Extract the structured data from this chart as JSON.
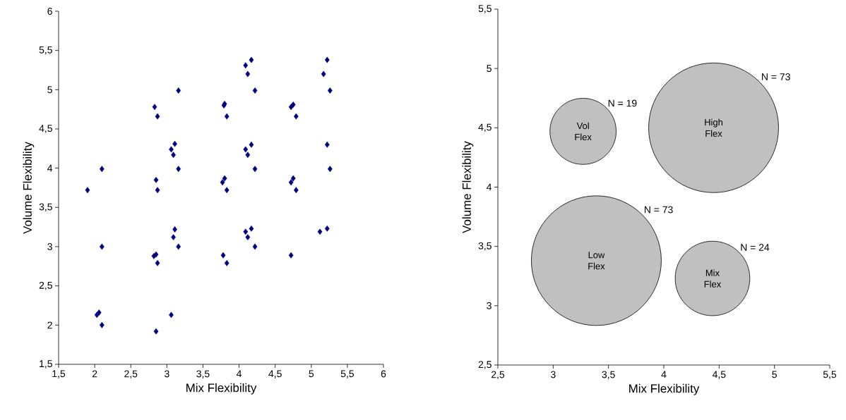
{
  "chart_data": [
    {
      "type": "scatter",
      "xlabel": "Mix Flexibility",
      "ylabel": "Volume Flexibility",
      "marker": "diamond",
      "color": "#000080",
      "xlim": [
        1.5,
        6
      ],
      "ylim": [
        1.5,
        6
      ],
      "xticks": [
        {
          "value": 1.5,
          "label": "1,5"
        },
        2,
        {
          "value": 2.5,
          "label": "2,5"
        },
        3,
        {
          "value": 3.5,
          "label": "3,5"
        },
        4,
        {
          "value": 4.5,
          "label": "4,5"
        },
        5,
        {
          "value": 5.5,
          "label": "5,5"
        },
        6
      ],
      "yticks": [
        {
          "value": 1.5,
          "label": "1,5"
        },
        2,
        {
          "value": 2.5,
          "label": "2,5"
        },
        3,
        {
          "value": 3.5,
          "label": "3,5"
        },
        4,
        {
          "value": 4.5,
          "label": "4,5"
        },
        5,
        {
          "value": 5.5,
          "label": "5,5"
        },
        6
      ],
      "x": [
        1.9,
        2.1,
        2.1,
        2.06,
        2.03,
        2.1,
        2.85,
        2.83,
        2.87,
        2.85,
        2.87,
        2.85,
        2.82,
        2.87,
        3.06,
        3.16,
        3.11,
        3.06,
        3.09,
        3.16,
        3.11,
        3.09,
        3.16,
        4.17,
        4.09,
        4.12,
        4.22,
        3.79,
        3.8,
        3.83,
        5.22,
        5.17,
        5.26,
        4.75,
        4.72,
        4.79,
        4.17,
        4.09,
        4.12,
        4.22,
        3.8,
        3.77,
        3.83,
        5.22,
        5.26,
        4.75,
        4.72,
        4.79,
        4.17,
        4.09,
        4.12,
        4.22,
        3.78,
        3.83,
        4.72,
        5.12,
        5.22
      ],
      "values": [
        3.72,
        3.99,
        3.0,
        2.16,
        2.13,
        2.0,
        1.92,
        4.78,
        4.66,
        3.85,
        3.72,
        2.9,
        2.88,
        2.79,
        2.13,
        4.99,
        4.31,
        4.24,
        4.17,
        3.99,
        3.22,
        3.12,
        3.0,
        5.38,
        5.31,
        5.2,
        4.99,
        4.8,
        4.82,
        4.66,
        5.38,
        5.2,
        4.99,
        4.81,
        4.78,
        4.66,
        4.3,
        4.24,
        4.17,
        3.99,
        3.87,
        3.82,
        3.72,
        4.3,
        3.99,
        3.87,
        3.82,
        3.72,
        3.23,
        3.19,
        3.12,
        3.0,
        2.89,
        2.79,
        2.89,
        3.19,
        3.23
      ]
    },
    {
      "type": "bubble",
      "xlabel": "Mix Flexibility",
      "ylabel": "Volume Flexibility",
      "xlim": [
        2.5,
        5.5
      ],
      "ylim": [
        2.5,
        5.5
      ],
      "xticks": [
        {
          "value": 2.5,
          "label": "2,5"
        },
        3,
        {
          "value": 3.5,
          "label": "3,5"
        },
        4,
        {
          "value": 4.5,
          "label": "4,5"
        },
        5,
        {
          "value": 5.5,
          "label": "5,5"
        }
      ],
      "yticks": [
        {
          "value": 2.5,
          "label": "2,5"
        },
        3,
        {
          "value": 3.5,
          "label": "3,5"
        },
        4,
        {
          "value": 4.5,
          "label": "4,5"
        },
        5,
        {
          "value": 5.5,
          "label": "5,5"
        }
      ],
      "series": [
        {
          "name": "Vol Flex",
          "color": "#c0c0c0",
          "x": [
            3.27
          ],
          "values": [
            4.47
          ],
          "sizes": [
            0.26
          ]
        },
        {
          "name": "High Flex",
          "color": "#c0c0c0",
          "x": [
            4.45
          ],
          "values": [
            4.5
          ],
          "sizes": [
            1
          ]
        },
        {
          "name": "Low Flex",
          "color": "#c0c0c0",
          "x": [
            3.39
          ],
          "values": [
            3.38
          ],
          "sizes": [
            1
          ]
        },
        {
          "name": "Mix Flex",
          "color": "#c0c0c0",
          "x": [
            4.44
          ],
          "values": [
            3.23
          ],
          "sizes": [
            0.33
          ]
        }
      ],
      "annotations": [
        "N = 19",
        "N = 73",
        "N = 73",
        "N = 24"
      ]
    }
  ]
}
